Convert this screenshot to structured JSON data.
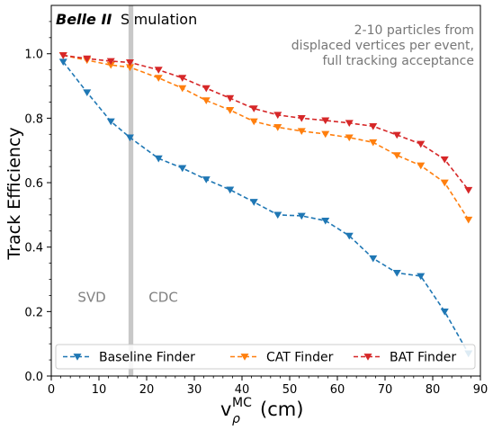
{
  "chart_data": {
    "type": "line",
    "brand": "Belle II",
    "brand_suffix": "Simulation",
    "annotation_lines": [
      "2-10 particles from",
      "displaced vertices per event,",
      "full tracking acceptance"
    ],
    "ylabel": "Track Efficiency",
    "xlabel_main": "v",
    "xlabel_sup": "MC",
    "xlabel_sub": "ρ",
    "xlabel_unit": "(cm)",
    "xlim": [
      0,
      90
    ],
    "ylim": [
      0,
      1.15
    ],
    "xticks": [
      0,
      10,
      20,
      30,
      40,
      50,
      60,
      70,
      80,
      90
    ],
    "yticks": [
      0.0,
      0.2,
      0.4,
      0.6,
      0.8,
      1.0
    ],
    "ytick_labels": [
      "0.0",
      "0.2",
      "0.4",
      "0.6",
      "0.8",
      "1.0"
    ],
    "region_labels": [
      {
        "text": "SVD",
        "x": 8.5,
        "y": 0.23
      },
      {
        "text": "CDC",
        "x": 23.5,
        "y": 0.23
      }
    ],
    "boundary_band": [
      16.2,
      17.2
    ],
    "boundary_color": "#c8c8c8",
    "x": [
      2.5,
      7.5,
      12.5,
      16.5,
      22.5,
      27.5,
      32.5,
      37.5,
      42.5,
      47.5,
      52.5,
      57.5,
      62.5,
      67.5,
      72.5,
      77.5,
      82.5,
      87.5
    ],
    "series": [
      {
        "name": "Baseline Finder",
        "color": "#1f77b4",
        "values": [
          0.975,
          0.88,
          0.79,
          0.74,
          0.675,
          0.645,
          0.61,
          0.578,
          0.54,
          0.5,
          0.497,
          0.482,
          0.435,
          0.365,
          0.32,
          0.31,
          0.2,
          0.07
        ]
      },
      {
        "name": "CAT Finder",
        "color": "#ff7f0e",
        "values": [
          0.995,
          0.98,
          0.965,
          0.958,
          0.925,
          0.893,
          0.855,
          0.825,
          0.79,
          0.772,
          0.76,
          0.751,
          0.74,
          0.725,
          0.685,
          0.653,
          0.6,
          0.485
        ]
      },
      {
        "name": "BAT Finder",
        "color": "#d62728",
        "values": [
          0.995,
          0.985,
          0.977,
          0.973,
          0.95,
          0.925,
          0.893,
          0.862,
          0.83,
          0.81,
          0.8,
          0.793,
          0.785,
          0.775,
          0.748,
          0.72,
          0.672,
          0.577
        ]
      }
    ],
    "legend_position": "bottom",
    "grid": false
  }
}
